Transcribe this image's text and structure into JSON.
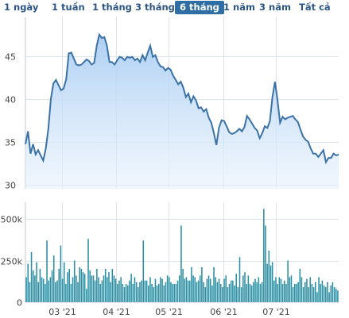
{
  "range_tabs": [
    {
      "label": "1 ngày",
      "active": false
    },
    {
      "label": "1 tuần",
      "active": false
    },
    {
      "label": "1 tháng",
      "active": false
    },
    {
      "label": "3 tháng",
      "active": false
    },
    {
      "label": "6 tháng",
      "active": true
    },
    {
      "label": "1 năm",
      "active": false
    },
    {
      "label": "3 năm",
      "active": false
    },
    {
      "label": "Tất cả",
      "active": false
    }
  ],
  "colors": {
    "price_line": "#3a72a8",
    "price_fill_top": "#a9cdf3",
    "price_fill_bottom": "#e6f1fc",
    "volume_bar": "#2b8fa3",
    "grid": "#dde3ea",
    "axis": "#bfc7d0",
    "active_tab": "#2f6ea5",
    "tab_text": "#2b5585"
  },
  "chart_data": [
    {
      "type": "area",
      "name": "price",
      "x_start": "2021-02-08",
      "x_end": "2021-08-06",
      "ylim": [
        29.5,
        49.5
      ],
      "yticks": [
        30,
        35,
        40,
        45
      ],
      "xticks": [
        {
          "label": "03 '21",
          "date": "2021-03-01"
        },
        {
          "label": "04 '21",
          "date": "2021-04-01"
        },
        {
          "label": "05 '21",
          "date": "2021-05-01"
        },
        {
          "label": "06 '21",
          "date": "2021-06-01"
        },
        {
          "label": "07 '21",
          "date": "2021-07-01"
        }
      ],
      "grid": true,
      "values": [
        34.7,
        36.2,
        33.6,
        34.7,
        33.5,
        34.0,
        33.4,
        32.8,
        34.2,
        36.5,
        40.0,
        41.8,
        42.2,
        41.6,
        41.0,
        41.2,
        42.3,
        45.3,
        45.4,
        44.7,
        44.0,
        43.9,
        44.0,
        44.3,
        44.6,
        44.4,
        44.0,
        44.2,
        46.2,
        47.5,
        47.1,
        47.2,
        46.2,
        44.3,
        44.3,
        44.0,
        44.5,
        44.9,
        44.8,
        44.5,
        44.9,
        44.8,
        44.9,
        44.5,
        44.7,
        44.3,
        45.1,
        44.5,
        45.4,
        46.2,
        44.9,
        45.1,
        44.3,
        43.8,
        43.7,
        43.3,
        43.6,
        43.4,
        42.7,
        42.2,
        41.7,
        42.0,
        41.3,
        40.2,
        40.6,
        39.6,
        40.3,
        39.8,
        38.9,
        39.0,
        38.5,
        38.8,
        37.8,
        37.2,
        36.0,
        34.6,
        36.6,
        37.5,
        37.4,
        36.8,
        36.1,
        35.9,
        36.0,
        36.2,
        36.5,
        36.2,
        36.7,
        38.0,
        37.6,
        37.1,
        36.6,
        36.3,
        35.4,
        36.0,
        36.8,
        36.6,
        37.4,
        40.2,
        42.0,
        39.8,
        37.2,
        37.9,
        37.6,
        37.8,
        37.9,
        38.0,
        37.6,
        37.3,
        36.4,
        35.6,
        35.2,
        35.0,
        34.2,
        33.6,
        33.6,
        33.2,
        33.6,
        34.0,
        32.6,
        33.1,
        33.1,
        33.6,
        33.4,
        33.5
      ]
    },
    {
      "type": "bar",
      "name": "volume",
      "ylim": [
        0,
        600000
      ],
      "yticks": [
        {
          "label": "0",
          "value": 0
        },
        {
          "label": "250k",
          "value": 250000
        },
        {
          "label": "500k",
          "value": 500000
        }
      ],
      "values": [
        150000,
        230000,
        120000,
        300000,
        190000,
        160000,
        240000,
        120000,
        200000,
        150000,
        140000,
        110000,
        370000,
        130000,
        150000,
        190000,
        280000,
        120000,
        130000,
        200000,
        340000,
        140000,
        240000,
        110000,
        180000,
        200000,
        110000,
        150000,
        250000,
        160000,
        120000,
        210000,
        200000,
        180000,
        170000,
        80000,
        380000,
        190000,
        160000,
        160000,
        130000,
        200000,
        150000,
        110000,
        130000,
        160000,
        200000,
        150000,
        180000,
        120000,
        200000,
        160000,
        140000,
        110000,
        130000,
        150000,
        110000,
        90000,
        110000,
        100000,
        130000,
        170000,
        110000,
        150000,
        120000,
        90000,
        120000,
        130000,
        370000,
        130000,
        130000,
        100000,
        150000,
        110000,
        90000,
        140000,
        100000,
        110000,
        150000,
        140000,
        100000,
        120000,
        160000,
        150000,
        120000,
        110000,
        110000,
        110000,
        130000,
        160000,
        460000,
        200000,
        140000,
        150000,
        130000,
        130000,
        210000,
        160000,
        150000,
        120000,
        130000,
        160000,
        210000,
        120000,
        90000,
        140000,
        160000,
        140000,
        100000,
        210000,
        150000,
        120000,
        140000,
        110000,
        90000,
        140000,
        160000,
        90000,
        110000,
        130000,
        130000,
        100000,
        170000,
        90000,
        270000,
        90000,
        160000,
        180000,
        110000,
        160000,
        110000,
        100000,
        120000,
        140000,
        120000,
        150000,
        110000,
        120000,
        560000,
        460000,
        230000,
        310000,
        220000,
        240000,
        130000,
        150000,
        110000,
        150000,
        140000,
        110000,
        130000,
        110000,
        250000,
        150000,
        160000,
        90000,
        110000,
        110000,
        120000,
        200000,
        150000,
        90000,
        120000,
        140000,
        90000,
        150000,
        110000,
        90000,
        120000,
        60000,
        150000,
        110000,
        130000,
        100000,
        90000,
        120000,
        60000,
        100000,
        120000,
        90000,
        80000,
        70000
      ]
    }
  ]
}
